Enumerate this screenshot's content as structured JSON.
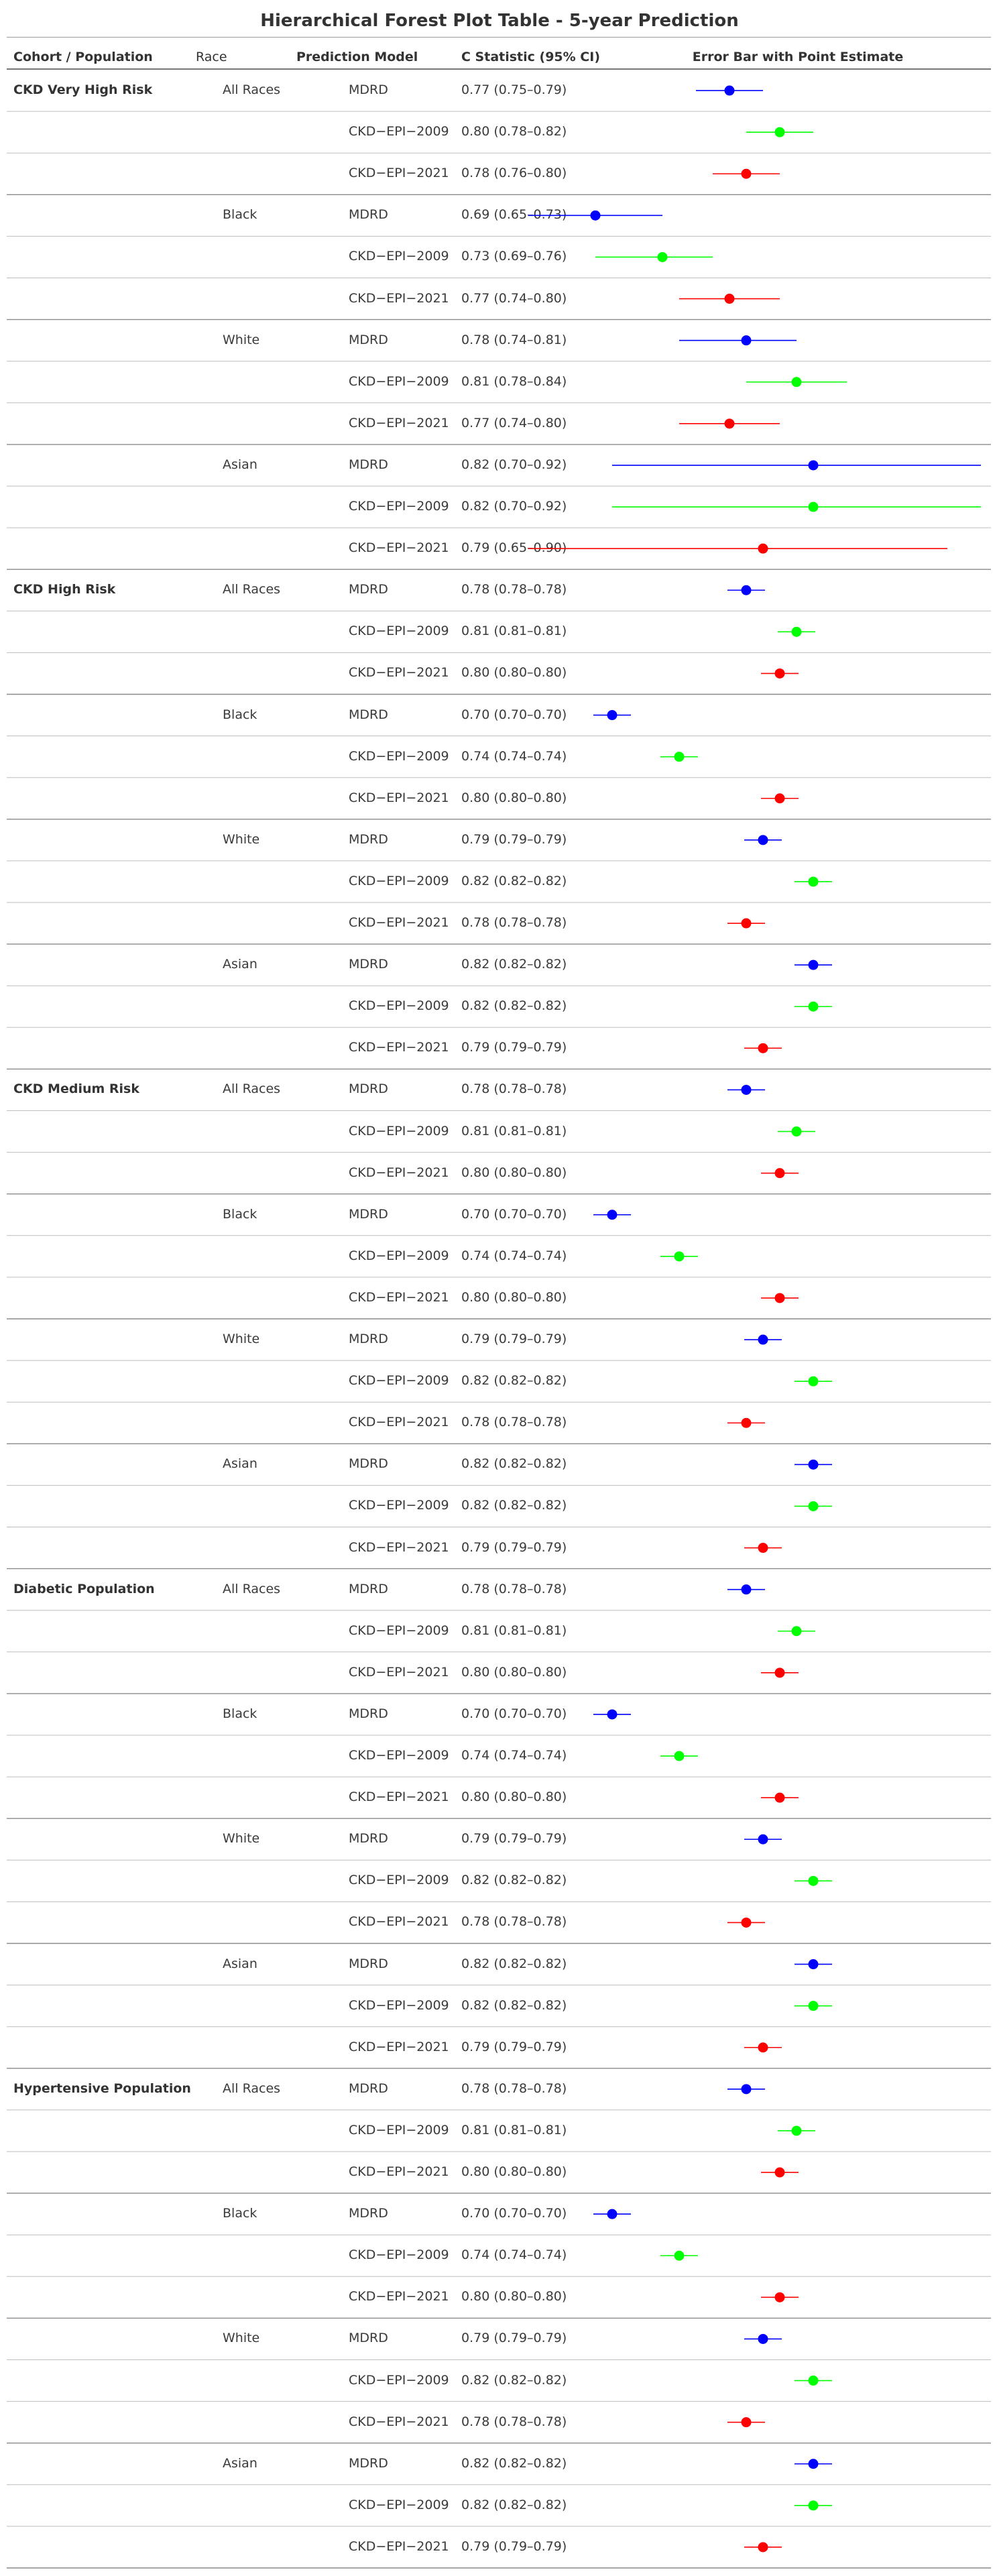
{
  "title": "Hierarchical Forest Plot Table - 5-year Prediction",
  "headers": {
    "cohort": "Cohort / Population",
    "race": "Race",
    "model": "Prediction Model",
    "cstat": "C Statistic (95% CI)",
    "errorbar": "Error Bar with Point Estimate"
  },
  "colors": {
    "MDRD": "#0000ff",
    "CKD−EPI−2009": "#00ff00",
    "CKD−EPI−2021": "#ff0000"
  },
  "chart_data": {
    "type": "table",
    "x_range": [
      0.6,
      1.0
    ],
    "cohorts": [
      {
        "name": "CKD Very High Risk",
        "races": [
          {
            "name": "All Races",
            "rows": [
              {
                "model": "MDRD",
                "text": "0.77 (0.75–0.79)",
                "est": 0.77,
                "lo": 0.75,
                "hi": 0.79
              },
              {
                "model": "CKD−EPI−2009",
                "text": "0.80 (0.78–0.82)",
                "est": 0.8,
                "lo": 0.78,
                "hi": 0.82
              },
              {
                "model": "CKD−EPI−2021",
                "text": "0.78 (0.76–0.80)",
                "est": 0.78,
                "lo": 0.76,
                "hi": 0.8
              }
            ]
          },
          {
            "name": "Black",
            "rows": [
              {
                "model": "MDRD",
                "text": "0.69 (0.65–0.73)",
                "est": 0.69,
                "lo": 0.65,
                "hi": 0.73
              },
              {
                "model": "CKD−EPI−2009",
                "text": "0.73 (0.69–0.76)",
                "est": 0.73,
                "lo": 0.69,
                "hi": 0.76
              },
              {
                "model": "CKD−EPI−2021",
                "text": "0.77 (0.74–0.80)",
                "est": 0.77,
                "lo": 0.74,
                "hi": 0.8
              }
            ]
          },
          {
            "name": "White",
            "rows": [
              {
                "model": "MDRD",
                "text": "0.78 (0.74–0.81)",
                "est": 0.78,
                "lo": 0.74,
                "hi": 0.81
              },
              {
                "model": "CKD−EPI−2009",
                "text": "0.81 (0.78–0.84)",
                "est": 0.81,
                "lo": 0.78,
                "hi": 0.84
              },
              {
                "model": "CKD−EPI−2021",
                "text": "0.77 (0.74–0.80)",
                "est": 0.77,
                "lo": 0.74,
                "hi": 0.8
              }
            ]
          },
          {
            "name": "Asian",
            "rows": [
              {
                "model": "MDRD",
                "text": "0.82 (0.70–0.92)",
                "est": 0.82,
                "lo": 0.7,
                "hi": 0.92
              },
              {
                "model": "CKD−EPI−2009",
                "text": "0.82 (0.70–0.92)",
                "est": 0.82,
                "lo": 0.7,
                "hi": 0.92
              },
              {
                "model": "CKD−EPI−2021",
                "text": "0.79 (0.65–0.90)",
                "est": 0.79,
                "lo": 0.65,
                "hi": 0.9
              }
            ]
          }
        ]
      },
      {
        "name": "CKD High Risk",
        "races": [
          {
            "name": "All Races",
            "rows": [
              {
                "model": "MDRD",
                "text": "0.78 (0.78–0.78)",
                "est": 0.78,
                "lo": 0.78,
                "hi": 0.78
              },
              {
                "model": "CKD−EPI−2009",
                "text": "0.81 (0.81–0.81)",
                "est": 0.81,
                "lo": 0.81,
                "hi": 0.81
              },
              {
                "model": "CKD−EPI−2021",
                "text": "0.80 (0.80–0.80)",
                "est": 0.8,
                "lo": 0.8,
                "hi": 0.8
              }
            ]
          },
          {
            "name": "Black",
            "rows": [
              {
                "model": "MDRD",
                "text": "0.70 (0.70–0.70)",
                "est": 0.7,
                "lo": 0.7,
                "hi": 0.7
              },
              {
                "model": "CKD−EPI−2009",
                "text": "0.74 (0.74–0.74)",
                "est": 0.74,
                "lo": 0.74,
                "hi": 0.74
              },
              {
                "model": "CKD−EPI−2021",
                "text": "0.80 (0.80–0.80)",
                "est": 0.8,
                "lo": 0.8,
                "hi": 0.8
              }
            ]
          },
          {
            "name": "White",
            "rows": [
              {
                "model": "MDRD",
                "text": "0.79 (0.79–0.79)",
                "est": 0.79,
                "lo": 0.79,
                "hi": 0.79
              },
              {
                "model": "CKD−EPI−2009",
                "text": "0.82 (0.82–0.82)",
                "est": 0.82,
                "lo": 0.82,
                "hi": 0.82
              },
              {
                "model": "CKD−EPI−2021",
                "text": "0.78 (0.78–0.78)",
                "est": 0.78,
                "lo": 0.78,
                "hi": 0.78
              }
            ]
          },
          {
            "name": "Asian",
            "rows": [
              {
                "model": "MDRD",
                "text": "0.82 (0.82–0.82)",
                "est": 0.82,
                "lo": 0.82,
                "hi": 0.82
              },
              {
                "model": "CKD−EPI−2009",
                "text": "0.82 (0.82–0.82)",
                "est": 0.82,
                "lo": 0.82,
                "hi": 0.82
              },
              {
                "model": "CKD−EPI−2021",
                "text": "0.79 (0.79–0.79)",
                "est": 0.79,
                "lo": 0.79,
                "hi": 0.79
              }
            ]
          }
        ]
      },
      {
        "name": "CKD Medium Risk",
        "races": [
          {
            "name": "All Races",
            "rows": [
              {
                "model": "MDRD",
                "text": "0.78 (0.78–0.78)",
                "est": 0.78,
                "lo": 0.78,
                "hi": 0.78
              },
              {
                "model": "CKD−EPI−2009",
                "text": "0.81 (0.81–0.81)",
                "est": 0.81,
                "lo": 0.81,
                "hi": 0.81
              },
              {
                "model": "CKD−EPI−2021",
                "text": "0.80 (0.80–0.80)",
                "est": 0.8,
                "lo": 0.8,
                "hi": 0.8
              }
            ]
          },
          {
            "name": "Black",
            "rows": [
              {
                "model": "MDRD",
                "text": "0.70 (0.70–0.70)",
                "est": 0.7,
                "lo": 0.7,
                "hi": 0.7
              },
              {
                "model": "CKD−EPI−2009",
                "text": "0.74 (0.74–0.74)",
                "est": 0.74,
                "lo": 0.74,
                "hi": 0.74
              },
              {
                "model": "CKD−EPI−2021",
                "text": "0.80 (0.80–0.80)",
                "est": 0.8,
                "lo": 0.8,
                "hi": 0.8
              }
            ]
          },
          {
            "name": "White",
            "rows": [
              {
                "model": "MDRD",
                "text": "0.79 (0.79–0.79)",
                "est": 0.79,
                "lo": 0.79,
                "hi": 0.79
              },
              {
                "model": "CKD−EPI−2009",
                "text": "0.82 (0.82–0.82)",
                "est": 0.82,
                "lo": 0.82,
                "hi": 0.82
              },
              {
                "model": "CKD−EPI−2021",
                "text": "0.78 (0.78–0.78)",
                "est": 0.78,
                "lo": 0.78,
                "hi": 0.78
              }
            ]
          },
          {
            "name": "Asian",
            "rows": [
              {
                "model": "MDRD",
                "text": "0.82 (0.82–0.82)",
                "est": 0.82,
                "lo": 0.82,
                "hi": 0.82
              },
              {
                "model": "CKD−EPI−2009",
                "text": "0.82 (0.82–0.82)",
                "est": 0.82,
                "lo": 0.82,
                "hi": 0.82
              },
              {
                "model": "CKD−EPI−2021",
                "text": "0.79 (0.79–0.79)",
                "est": 0.79,
                "lo": 0.79,
                "hi": 0.79
              }
            ]
          }
        ]
      },
      {
        "name": "Diabetic Population",
        "races": [
          {
            "name": "All Races",
            "rows": [
              {
                "model": "MDRD",
                "text": "0.78 (0.78–0.78)",
                "est": 0.78,
                "lo": 0.78,
                "hi": 0.78
              },
              {
                "model": "CKD−EPI−2009",
                "text": "0.81 (0.81–0.81)",
                "est": 0.81,
                "lo": 0.81,
                "hi": 0.81
              },
              {
                "model": "CKD−EPI−2021",
                "text": "0.80 (0.80–0.80)",
                "est": 0.8,
                "lo": 0.8,
                "hi": 0.8
              }
            ]
          },
          {
            "name": "Black",
            "rows": [
              {
                "model": "MDRD",
                "text": "0.70 (0.70–0.70)",
                "est": 0.7,
                "lo": 0.7,
                "hi": 0.7
              },
              {
                "model": "CKD−EPI−2009",
                "text": "0.74 (0.74–0.74)",
                "est": 0.74,
                "lo": 0.74,
                "hi": 0.74
              },
              {
                "model": "CKD−EPI−2021",
                "text": "0.80 (0.80–0.80)",
                "est": 0.8,
                "lo": 0.8,
                "hi": 0.8
              }
            ]
          },
          {
            "name": "White",
            "rows": [
              {
                "model": "MDRD",
                "text": "0.79 (0.79–0.79)",
                "est": 0.79,
                "lo": 0.79,
                "hi": 0.79
              },
              {
                "model": "CKD−EPI−2009",
                "text": "0.82 (0.82–0.82)",
                "est": 0.82,
                "lo": 0.82,
                "hi": 0.82
              },
              {
                "model": "CKD−EPI−2021",
                "text": "0.78 (0.78–0.78)",
                "est": 0.78,
                "lo": 0.78,
                "hi": 0.78
              }
            ]
          },
          {
            "name": "Asian",
            "rows": [
              {
                "model": "MDRD",
                "text": "0.82 (0.82–0.82)",
                "est": 0.82,
                "lo": 0.82,
                "hi": 0.82
              },
              {
                "model": "CKD−EPI−2009",
                "text": "0.82 (0.82–0.82)",
                "est": 0.82,
                "lo": 0.82,
                "hi": 0.82
              },
              {
                "model": "CKD−EPI−2021",
                "text": "0.79 (0.79–0.79)",
                "est": 0.79,
                "lo": 0.79,
                "hi": 0.79
              }
            ]
          }
        ]
      },
      {
        "name": "Hypertensive Population",
        "races": [
          {
            "name": "All Races",
            "rows": [
              {
                "model": "MDRD",
                "text": "0.78 (0.78–0.78)",
                "est": 0.78,
                "lo": 0.78,
                "hi": 0.78
              },
              {
                "model": "CKD−EPI−2009",
                "text": "0.81 (0.81–0.81)",
                "est": 0.81,
                "lo": 0.81,
                "hi": 0.81
              },
              {
                "model": "CKD−EPI−2021",
                "text": "0.80 (0.80–0.80)",
                "est": 0.8,
                "lo": 0.8,
                "hi": 0.8
              }
            ]
          },
          {
            "name": "Black",
            "rows": [
              {
                "model": "MDRD",
                "text": "0.70 (0.70–0.70)",
                "est": 0.7,
                "lo": 0.7,
                "hi": 0.7
              },
              {
                "model": "CKD−EPI−2009",
                "text": "0.74 (0.74–0.74)",
                "est": 0.74,
                "lo": 0.74,
                "hi": 0.74
              },
              {
                "model": "CKD−EPI−2021",
                "text": "0.80 (0.80–0.80)",
                "est": 0.8,
                "lo": 0.8,
                "hi": 0.8
              }
            ]
          },
          {
            "name": "White",
            "rows": [
              {
                "model": "MDRD",
                "text": "0.79 (0.79–0.79)",
                "est": 0.79,
                "lo": 0.79,
                "hi": 0.79
              },
              {
                "model": "CKD−EPI−2009",
                "text": "0.82 (0.82–0.82)",
                "est": 0.82,
                "lo": 0.82,
                "hi": 0.82
              },
              {
                "model": "CKD−EPI−2021",
                "text": "0.78 (0.78–0.78)",
                "est": 0.78,
                "lo": 0.78,
                "hi": 0.78
              }
            ]
          },
          {
            "name": "Asian",
            "rows": [
              {
                "model": "MDRD",
                "text": "0.82 (0.82–0.82)",
                "est": 0.82,
                "lo": 0.82,
                "hi": 0.82
              },
              {
                "model": "CKD−EPI−2009",
                "text": "0.82 (0.82–0.82)",
                "est": 0.82,
                "lo": 0.82,
                "hi": 0.82
              },
              {
                "model": "CKD−EPI−2021",
                "text": "0.79 (0.79–0.79)",
                "est": 0.79,
                "lo": 0.79,
                "hi": 0.79
              }
            ]
          }
        ]
      }
    ]
  }
}
